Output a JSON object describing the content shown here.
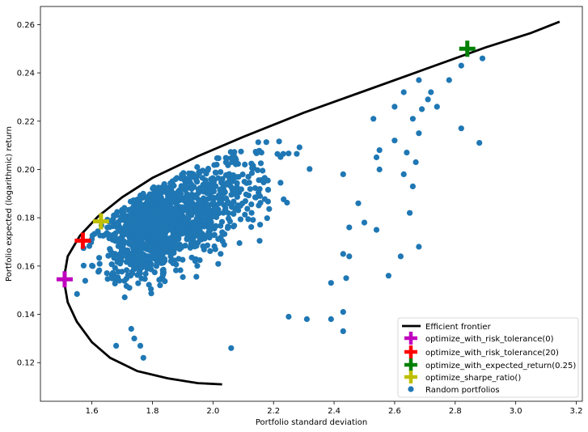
{
  "chart_data": {
    "type": "scatter",
    "xlabel": "Portfolio standard deviation",
    "ylabel": "Portfolio expected (logarithmic) return",
    "xlim": [
      1.43,
      3.22
    ],
    "ylim": [
      0.104,
      0.2675
    ],
    "x_ticks": [
      1.6,
      1.8,
      2.0,
      2.2,
      2.4,
      2.6,
      2.8,
      3.0,
      3.2
    ],
    "y_ticks": [
      0.12,
      0.14,
      0.16,
      0.18,
      0.2,
      0.22,
      0.24,
      0.26
    ],
    "x_tick_labels": [
      "1.6",
      "1.8",
      "2.0",
      "2.2",
      "2.4",
      "2.6",
      "2.8",
      "3.0",
      "3.2"
    ],
    "y_tick_labels": [
      "0.12",
      "0.14",
      "0.16",
      "0.18",
      "0.20",
      "0.22",
      "0.24",
      "0.26"
    ],
    "grid": false,
    "legend_position": "lower-right",
    "frontier": {
      "name": "Efficient frontier",
      "color": "#000000",
      "points": [
        [
          2.03,
          0.111
        ],
        [
          1.95,
          0.1115
        ],
        [
          1.85,
          0.1135
        ],
        [
          1.75,
          0.1165
        ],
        [
          1.66,
          0.122
        ],
        [
          1.6,
          0.1285
        ],
        [
          1.55,
          0.137
        ],
        [
          1.52,
          0.145
        ],
        [
          1.507,
          0.1545
        ],
        [
          1.52,
          0.164
        ],
        [
          1.56,
          0.1725
        ],
        [
          1.62,
          0.1805
        ],
        [
          1.7,
          0.1885
        ],
        [
          1.8,
          0.1965
        ],
        [
          1.95,
          0.2055
        ],
        [
          2.1,
          0.2135
        ],
        [
          2.3,
          0.2235
        ],
        [
          2.5,
          0.2325
        ],
        [
          2.7,
          0.2415
        ],
        [
          2.9,
          0.2505
        ],
        [
          3.05,
          0.2565
        ],
        [
          3.145,
          0.2612
        ]
      ]
    },
    "markers": [
      {
        "name": "optimize_with_risk_tolerance(0)",
        "color": "#bf00bf",
        "x": 1.51,
        "y": 0.1545
      },
      {
        "name": "optimize_with_risk_tolerance(20)",
        "color": "#ff0000",
        "x": 1.57,
        "y": 0.1705
      },
      {
        "name": "optimize_with_expected_return(0.25)",
        "color": "#008000",
        "x": 2.84,
        "y": 0.25
      },
      {
        "name": "optimize_sharpe_ratio()",
        "color": "#bfbf00",
        "x": 1.63,
        "y": 0.1785
      }
    ],
    "random_portfolios": {
      "name": "Random portfolios",
      "color": "#1f77b4",
      "count": 1500,
      "points": [
        [
          2.89,
          0.246
        ],
        [
          2.82,
          0.243
        ],
        [
          2.78,
          0.237
        ],
        [
          2.68,
          0.237
        ],
        [
          2.72,
          0.232
        ],
        [
          2.63,
          0.232
        ],
        [
          2.71,
          0.229
        ],
        [
          2.74,
          0.226
        ],
        [
          2.69,
          0.225
        ],
        [
          2.6,
          0.226
        ],
        [
          2.66,
          0.221
        ],
        [
          2.53,
          0.221
        ],
        [
          2.82,
          0.217
        ],
        [
          2.68,
          0.215
        ],
        [
          2.88,
          0.211
        ],
        [
          2.6,
          0.212
        ],
        [
          2.64,
          0.207
        ],
        [
          2.67,
          0.203
        ],
        [
          2.55,
          0.208
        ],
        [
          2.54,
          0.205
        ],
        [
          2.63,
          0.198
        ],
        [
          2.66,
          0.193
        ],
        [
          2.65,
          0.182
        ],
        [
          2.55,
          0.2
        ],
        [
          2.43,
          0.198
        ],
        [
          2.48,
          0.186
        ],
        [
          2.45,
          0.176
        ],
        [
          2.45,
          0.164
        ],
        [
          2.43,
          0.165
        ],
        [
          2.44,
          0.155
        ],
        [
          2.39,
          0.153
        ],
        [
          2.43,
          0.141
        ],
        [
          2.43,
          0.133
        ],
        [
          2.5,
          0.178
        ],
        [
          2.54,
          0.175
        ],
        [
          2.62,
          0.164
        ],
        [
          2.68,
          0.168
        ],
        [
          2.58,
          0.156
        ],
        [
          1.68,
          0.127
        ],
        [
          1.76,
          0.127
        ],
        [
          1.77,
          0.122
        ],
        [
          2.06,
          0.126
        ],
        [
          1.73,
          0.134
        ],
        [
          1.74,
          0.13
        ],
        [
          2.39,
          0.138
        ],
        [
          2.31,
          0.138
        ],
        [
          2.25,
          0.139
        ]
      ]
    },
    "legend": [
      "Efficient frontier",
      "optimize_with_risk_tolerance(0)",
      "optimize_with_risk_tolerance(20)",
      "optimize_with_expected_return(0.25)",
      "optimize_sharpe_ratio()",
      "Random portfolios"
    ]
  }
}
